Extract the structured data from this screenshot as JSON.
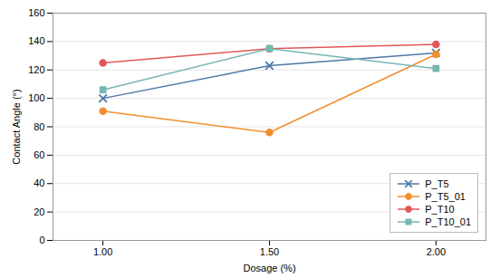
{
  "chart_data": {
    "type": "line",
    "x": [
      1.0,
      1.5,
      2.0
    ],
    "series": [
      {
        "name": "P_T5",
        "marker": "x",
        "values": [
          100,
          123,
          132
        ]
      },
      {
        "name": "P_T5_01",
        "marker": "circle",
        "values": [
          91,
          76,
          131
        ]
      },
      {
        "name": "P_T10",
        "marker": "circle",
        "values": [
          125,
          135,
          138
        ]
      },
      {
        "name": "P_T10_01",
        "marker": "square",
        "values": [
          106,
          135,
          121
        ]
      }
    ],
    "xlabel": "Dosage (%)",
    "ylabel": "Contact Angle (°)",
    "xlim": [
      0.85,
      2.15
    ],
    "xticks": [
      {
        "value": 1.0,
        "label": "1.00"
      },
      {
        "value": 1.5,
        "label": "1.50"
      },
      {
        "value": 2.0,
        "label": "2.00"
      }
    ],
    "ylim": [
      0,
      160
    ],
    "yticks": [
      0,
      20,
      40,
      60,
      80,
      100,
      120,
      140,
      160
    ],
    "grid": true,
    "legend": "lower right"
  }
}
